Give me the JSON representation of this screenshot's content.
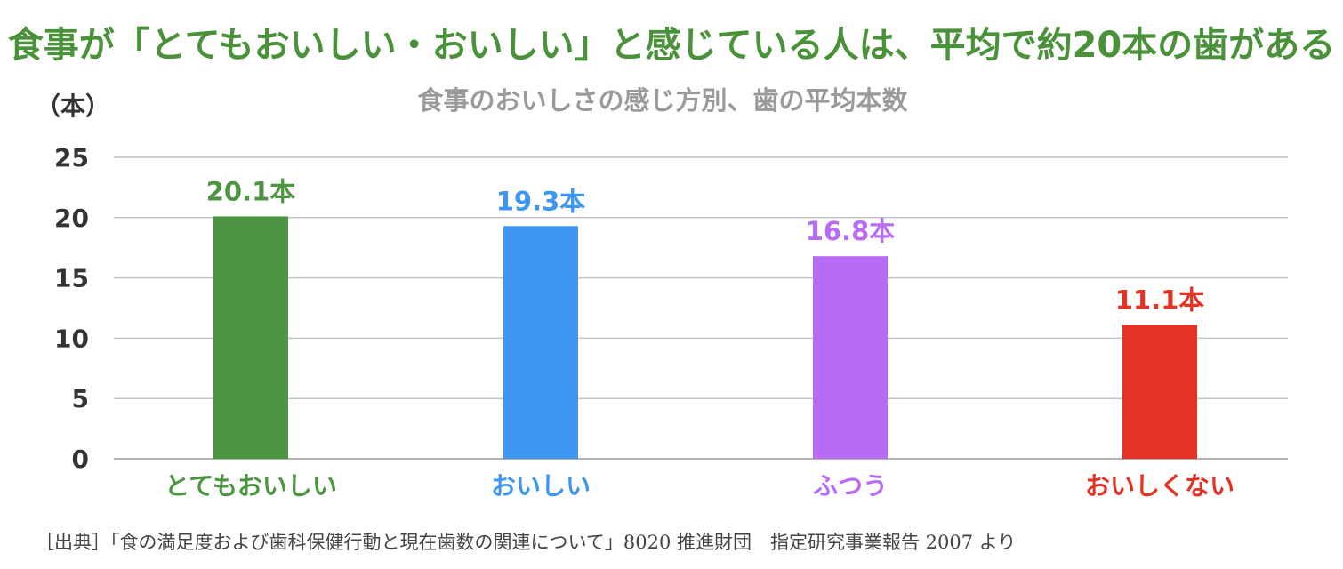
{
  "title": "食事が「とてもおいしい・おいしい」と感じている人は、平均で約20本の歯がある",
  "subtitle": "食事のおいしさの感じ方別、歯の平均本数",
  "source": "［出典］「食の満足度および歯科保健行動と現在歯数の関連について」8020 推進財団　指定研究事業報告 2007 より",
  "chart_data": {
    "type": "bar",
    "categories": [
      "とてもおいしい",
      "おいしい",
      "ふつう",
      "おいしくない"
    ],
    "values": [
      20.1,
      19.3,
      16.8,
      11.1
    ],
    "value_labels": [
      "20.1本",
      "19.3本",
      "16.8本",
      "11.1本"
    ],
    "colors": [
      "#4c9541",
      "#3d96f0",
      "#b86cf6",
      "#e43224"
    ],
    "ylabel": "（本）",
    "ylim": [
      0,
      25
    ],
    "yticks": [
      "0",
      "5",
      "10",
      "15",
      "20",
      "25"
    ],
    "grid": true
  }
}
